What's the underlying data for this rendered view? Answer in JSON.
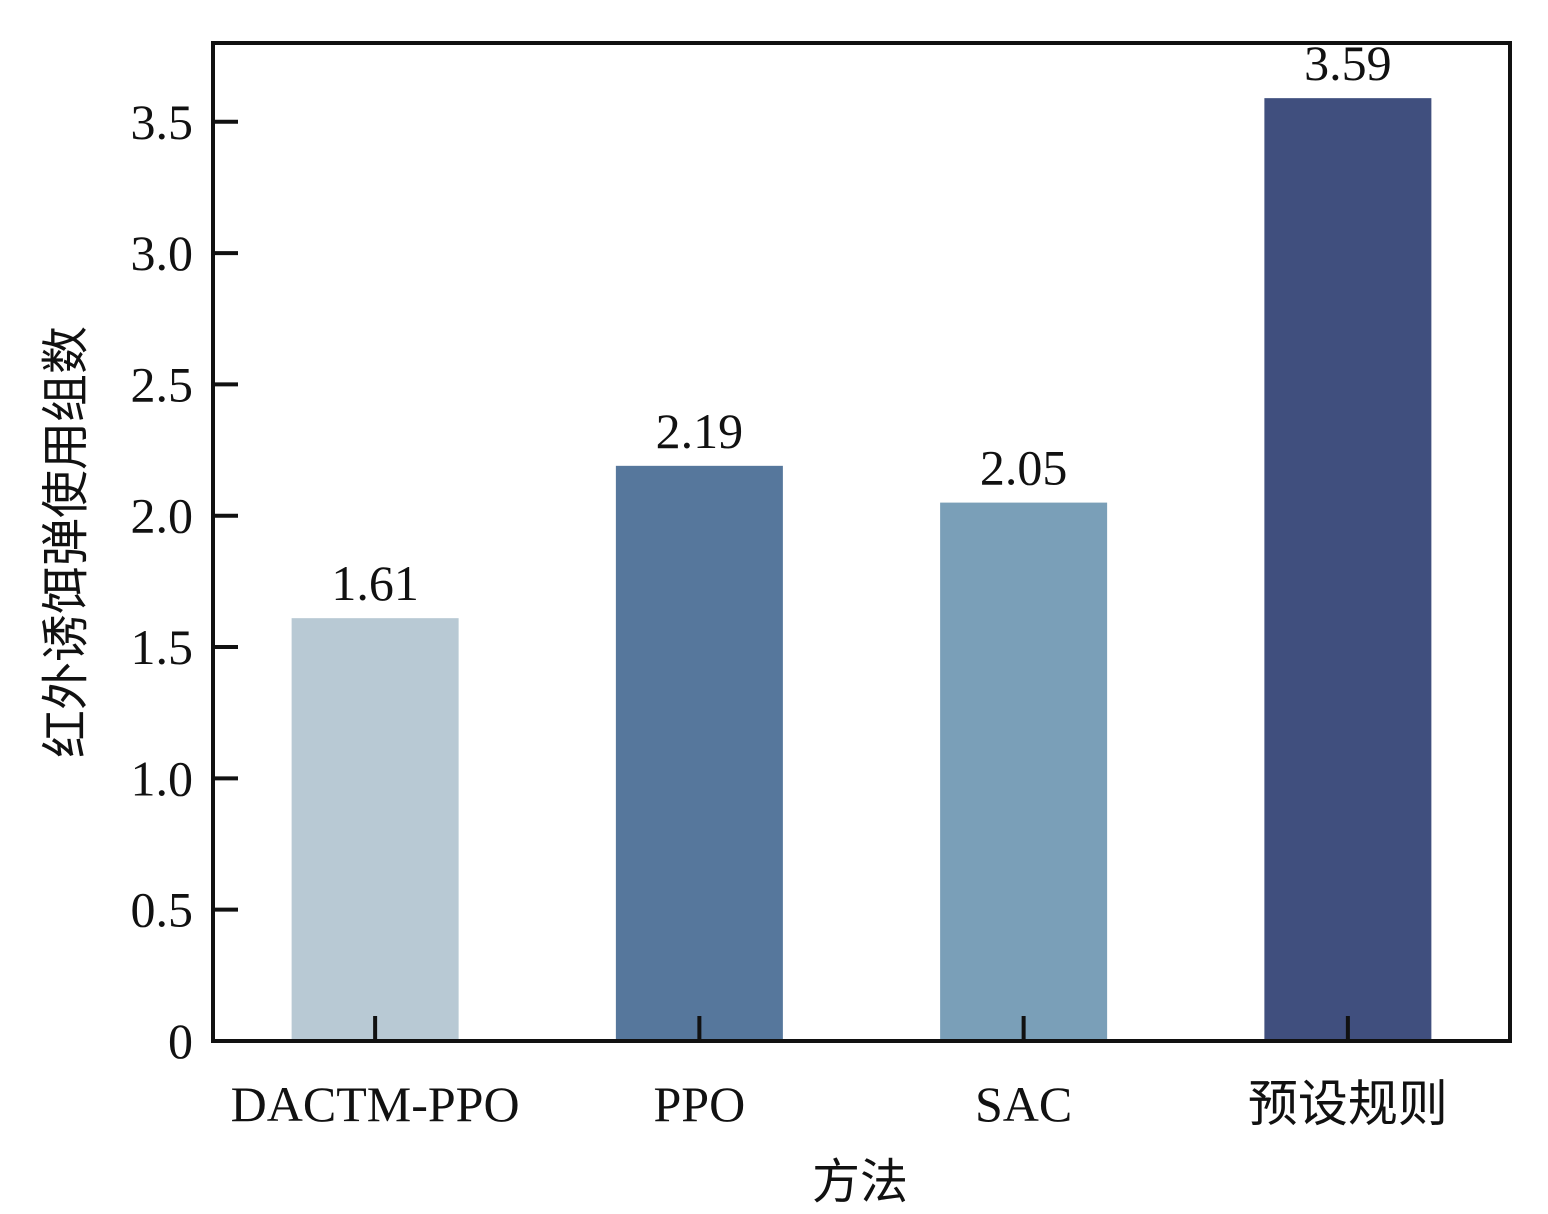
{
  "chart_data": {
    "type": "bar",
    "title": "",
    "xlabel": "方法",
    "ylabel": "红外诱饵弹使用组数",
    "categories": [
      "DACTM-PPO",
      "PPO",
      "SAC",
      "预设规则"
    ],
    "values": [
      1.61,
      2.19,
      2.05,
      3.59
    ],
    "data_labels": [
      "1.61",
      "2.19",
      "2.05",
      "3.59"
    ],
    "colors": [
      "#b8c9d4",
      "#56779c",
      "#7a9fb8",
      "#404f7e"
    ],
    "ylim": [
      0,
      3.8
    ],
    "yticks": [
      0,
      0.5,
      1.0,
      1.5,
      2.0,
      2.5,
      3.0,
      3.5
    ],
    "ytick_labels": [
      "0",
      "0.5",
      "1.0",
      "1.5",
      "2.0",
      "2.5",
      "3.0",
      "3.5"
    ],
    "grid": false,
    "legend": "none"
  }
}
